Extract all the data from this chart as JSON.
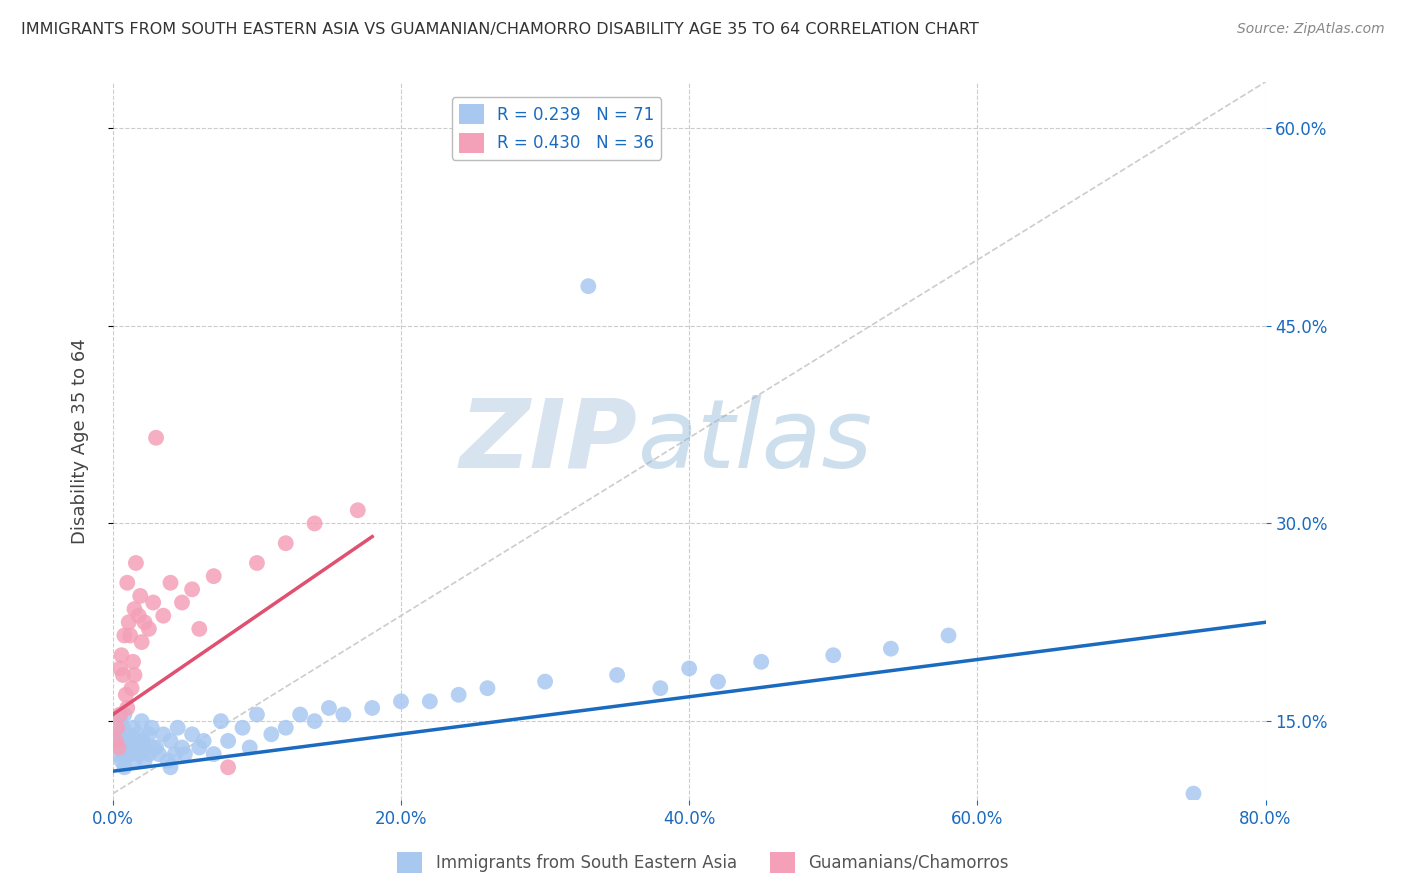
{
  "title": "IMMIGRANTS FROM SOUTH EASTERN ASIA VS GUAMANIAN/CHAMORRO DISABILITY AGE 35 TO 64 CORRELATION CHART",
  "source": "Source: ZipAtlas.com",
  "ylabel": "Disability Age 35 to 64",
  "xlabel_legend1": "Immigrants from South Eastern Asia",
  "xlabel_legend2": "Guamanians/Chamorros",
  "r1": 0.239,
  "n1": 71,
  "r2": 0.43,
  "n2": 36,
  "color1": "#a8c8f0",
  "color2": "#f4a0b8",
  "line1_color": "#1a6bbf",
  "line2_color": "#e05070",
  "xmin": 0.0,
  "xmax": 0.8,
  "ymin": 0.09,
  "ymax": 0.635,
  "yticks": [
    0.15,
    0.3,
    0.45,
    0.6
  ],
  "xticks": [
    0.0,
    0.2,
    0.4,
    0.6,
    0.8
  ],
  "watermark_zip": "ZIP",
  "watermark_atlas": "atlas",
  "background_color": "#ffffff",
  "grid_color": "#cccccc",
  "title_color": "#333333",
  "blue_scatter_x": [
    0.002,
    0.003,
    0.004,
    0.005,
    0.005,
    0.006,
    0.007,
    0.008,
    0.008,
    0.009,
    0.01,
    0.01,
    0.011,
    0.012,
    0.013,
    0.014,
    0.015,
    0.015,
    0.016,
    0.017,
    0.018,
    0.019,
    0.02,
    0.02,
    0.021,
    0.022,
    0.025,
    0.025,
    0.027,
    0.028,
    0.03,
    0.032,
    0.035,
    0.038,
    0.04,
    0.04,
    0.043,
    0.045,
    0.048,
    0.05,
    0.055,
    0.06,
    0.063,
    0.07,
    0.075,
    0.08,
    0.09,
    0.095,
    0.1,
    0.11,
    0.12,
    0.13,
    0.14,
    0.15,
    0.16,
    0.18,
    0.2,
    0.22,
    0.24,
    0.26,
    0.3,
    0.35,
    0.38,
    0.4,
    0.42,
    0.45,
    0.5,
    0.54,
    0.58,
    0.75,
    0.33
  ],
  "blue_scatter_y": [
    0.135,
    0.125,
    0.14,
    0.13,
    0.15,
    0.12,
    0.145,
    0.115,
    0.155,
    0.125,
    0.13,
    0.14,
    0.135,
    0.125,
    0.13,
    0.145,
    0.135,
    0.12,
    0.13,
    0.14,
    0.125,
    0.135,
    0.13,
    0.15,
    0.135,
    0.12,
    0.14,
    0.125,
    0.145,
    0.13,
    0.13,
    0.125,
    0.14,
    0.12,
    0.135,
    0.115,
    0.125,
    0.145,
    0.13,
    0.125,
    0.14,
    0.13,
    0.135,
    0.125,
    0.15,
    0.135,
    0.145,
    0.13,
    0.155,
    0.14,
    0.145,
    0.155,
    0.15,
    0.16,
    0.155,
    0.16,
    0.165,
    0.165,
    0.17,
    0.175,
    0.18,
    0.185,
    0.175,
    0.19,
    0.18,
    0.195,
    0.2,
    0.205,
    0.215,
    0.095,
    0.48
  ],
  "pink_scatter_x": [
    0.002,
    0.003,
    0.004,
    0.005,
    0.005,
    0.006,
    0.007,
    0.008,
    0.009,
    0.01,
    0.01,
    0.011,
    0.012,
    0.013,
    0.014,
    0.015,
    0.015,
    0.016,
    0.018,
    0.019,
    0.02,
    0.022,
    0.025,
    0.028,
    0.03,
    0.035,
    0.04,
    0.048,
    0.055,
    0.06,
    0.07,
    0.08,
    0.1,
    0.12,
    0.14,
    0.17
  ],
  "pink_scatter_y": [
    0.135,
    0.145,
    0.13,
    0.155,
    0.19,
    0.2,
    0.185,
    0.215,
    0.17,
    0.16,
    0.255,
    0.225,
    0.215,
    0.175,
    0.195,
    0.185,
    0.235,
    0.27,
    0.23,
    0.245,
    0.21,
    0.225,
    0.22,
    0.24,
    0.365,
    0.23,
    0.255,
    0.24,
    0.25,
    0.22,
    0.26,
    0.115,
    0.27,
    0.285,
    0.3,
    0.31
  ],
  "blue_line_x": [
    0.0,
    0.8
  ],
  "blue_line_y": [
    0.112,
    0.225
  ],
  "pink_line_x": [
    0.0,
    0.18
  ],
  "pink_line_y": [
    0.155,
    0.29
  ]
}
